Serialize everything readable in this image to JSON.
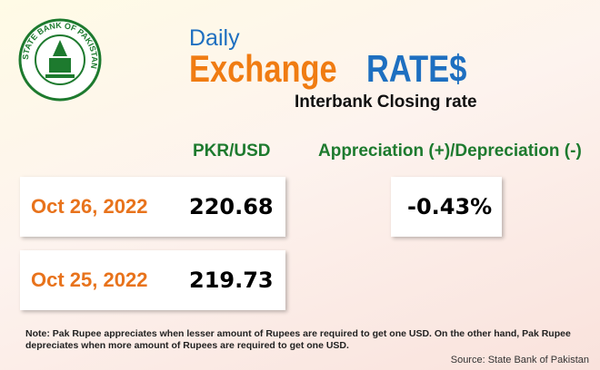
{
  "logo": {
    "text": "STATE BANK OF PAKISTAN"
  },
  "header": {
    "daily": "Daily",
    "exchange": "Exchange",
    "rates": "RATE$",
    "subtitle": "Interbank Closing rate"
  },
  "table": {
    "column_header": "PKR/USD",
    "change_header": "Appreciation (+)/Depreciation (-)",
    "rows": [
      [
        "Oct 26, 2022",
        "220.68"
      ],
      [
        "Oct 25, 2022",
        "219.73"
      ]
    ],
    "change": "-0.43%"
  },
  "note": {
    "lines": [
      "Note: Pak Rupee appreciates when lesser amount of Rupees are required to get one USD.  On the other hand, Pak Rupee",
      "depreciates when more amount of Rupees are required to get one USD."
    ]
  },
  "source": "Source: State Bank of Pakistan"
}
